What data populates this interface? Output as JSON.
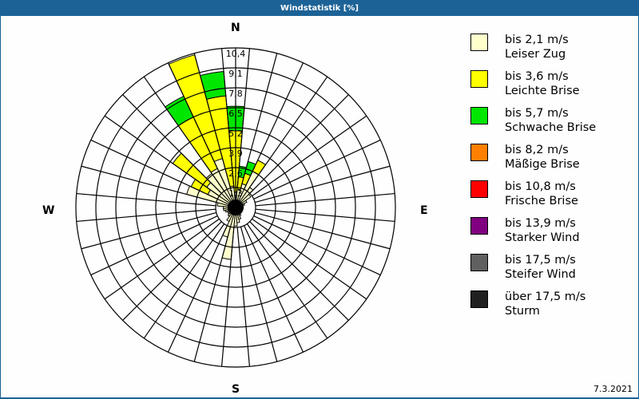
{
  "window": {
    "title": "Windstatistik [%]"
  },
  "compass": {
    "north": "N",
    "east": "E",
    "south": "S",
    "west": "W"
  },
  "footer": {
    "date": "7.3.2021"
  },
  "legend": [
    {
      "range": "bis 2,1 m/s",
      "name": "Leiser Zug",
      "color": "#ffffcc"
    },
    {
      "range": "bis 3,6 m/s",
      "name": "Leichte Brise",
      "color": "#ffff00"
    },
    {
      "range": "bis 5,7 m/s",
      "name": "Schwache Brise",
      "color": "#00e600"
    },
    {
      "range": "bis 8,2 m/s",
      "name": "Mäßige Brise",
      "color": "#ff8000"
    },
    {
      "range": "bis 10,8 m/s",
      "name": "Frische Brise",
      "color": "#ff0000"
    },
    {
      "range": "bis 13,9 m/s",
      "name": "Starker Wind",
      "color": "#800080"
    },
    {
      "range": "bis 17,5 m/s",
      "name": "Steifer Wind",
      "color": "#606060"
    },
    {
      "range": "über 17,5 m/s",
      "name": "Sturm",
      "color": "#202020"
    }
  ],
  "chart_data": {
    "type": "polar-stacked-bar",
    "title": "Windstatistik [%]",
    "unit": "%",
    "radial_ticks": [
      "1,3",
      "2,6",
      "3,9",
      "5,2",
      "6,5",
      "7,8",
      "9,1",
      "10,4"
    ],
    "rmax": 10.4,
    "sector_width_deg": 10,
    "series": [
      "Leiser Zug",
      "Leichte Brise",
      "Schwache Brise",
      "Mäßige Brise",
      "Frische Brise",
      "Starker Wind",
      "Steifer Wind",
      "Sturm"
    ],
    "note": "cumulative radii per direction (percent), bands: Leiser Zug, Leichte Brise, Schwache Brise",
    "directions": [
      {
        "deg": 0,
        "bands": [
          1.0,
          5.0,
          6.6
        ]
      },
      {
        "deg": 10,
        "bands": [
          1.2,
          2.0,
          2.7
        ]
      },
      {
        "deg": 20,
        "bands": [
          1.6,
          2.3,
          3.1
        ]
      },
      {
        "deg": 30,
        "bands": [
          2.6,
          3.4
        ]
      },
      {
        "deg": 40,
        "bands": [
          1.6
        ]
      },
      {
        "deg": 50,
        "bands": [
          1.2
        ]
      },
      {
        "deg": 60,
        "bands": [
          0.8
        ]
      },
      {
        "deg": 70,
        "bands": [
          0.6
        ]
      },
      {
        "deg": 80,
        "bands": [
          0.5
        ]
      },
      {
        "deg": 90,
        "bands": [
          0.5
        ]
      },
      {
        "deg": 100,
        "bands": [
          0.4
        ]
      },
      {
        "deg": 110,
        "bands": [
          0.4
        ]
      },
      {
        "deg": 120,
        "bands": [
          0.4
        ]
      },
      {
        "deg": 130,
        "bands": [
          0.5
        ]
      },
      {
        "deg": 140,
        "bands": [
          0.5
        ]
      },
      {
        "deg": 150,
        "bands": [
          0.6
        ]
      },
      {
        "deg": 160,
        "bands": [
          0.8
        ]
      },
      {
        "deg": 170,
        "bands": [
          1.0
        ]
      },
      {
        "deg": 180,
        "bands": [
          1.2
        ]
      },
      {
        "deg": 190,
        "bands": [
          3.4
        ]
      },
      {
        "deg": 200,
        "bands": [
          2.0
        ]
      },
      {
        "deg": 210,
        "bands": [
          1.0
        ]
      },
      {
        "deg": 220,
        "bands": [
          0.7
        ]
      },
      {
        "deg": 230,
        "bands": [
          0.6
        ]
      },
      {
        "deg": 240,
        "bands": [
          0.6
        ]
      },
      {
        "deg": 250,
        "bands": [
          0.7
        ]
      },
      {
        "deg": 260,
        "bands": [
          0.8
        ]
      },
      {
        "deg": 270,
        "bands": [
          0.8
        ]
      },
      {
        "deg": 280,
        "bands": [
          1.2
        ]
      },
      {
        "deg": 290,
        "bands": [
          3.3,
          3.3
        ]
      },
      {
        "deg": 300,
        "bands": [
          2.0,
          3.2
        ]
      },
      {
        "deg": 310,
        "bands": [
          2.3,
          5.0
        ]
      },
      {
        "deg": 320,
        "bands": [
          2.7,
          2.7
        ]
      },
      {
        "deg": 330,
        "bands": [
          2.8,
          6.5,
          8.0
        ]
      },
      {
        "deg": 340,
        "bands": [
          3.3,
          10.3
        ]
      },
      {
        "deg": 350,
        "bands": [
          1.4,
          7.3,
          8.9
        ]
      }
    ]
  }
}
